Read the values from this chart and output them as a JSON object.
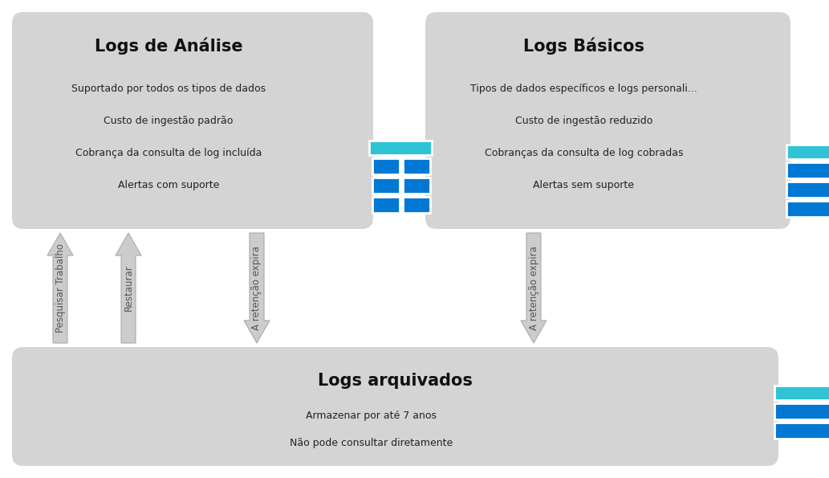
{
  "bg_color": "#ffffff",
  "box_color": "#d4d4d4",
  "analise_title": "Logs de Análise",
  "analise_lines": [
    "Suportado por todos os tipos de dados",
    "Custo de ingestão padrão",
    "Cobrança da consulta de log incluída",
    "Alertas com suporte"
  ],
  "basicos_title": "Logs Básicos",
  "basicos_lines": [
    "Tipos de dados específicos e logs personali...",
    "Custo de ingestão reduzido",
    "Cobranças da consulta de log cobradas",
    "Alertas sem suporte"
  ],
  "arquivados_title": "Logs arquivados",
  "arquivados_lines": [
    "Armazenar por até 7 anos",
    "Não pode consultar diretamente"
  ],
  "cyan_color": "#2ec4d6",
  "blue_color": "#0078d4",
  "arrow1_label": "Pesquisar Trabalho",
  "arrow2_label": "Restaurar",
  "arrow3_label": "A retenção expira",
  "arrow4_label": "A retenção expira",
  "title_fontsize": 15,
  "body_fontsize": 9,
  "label_fontsize": 8.5
}
